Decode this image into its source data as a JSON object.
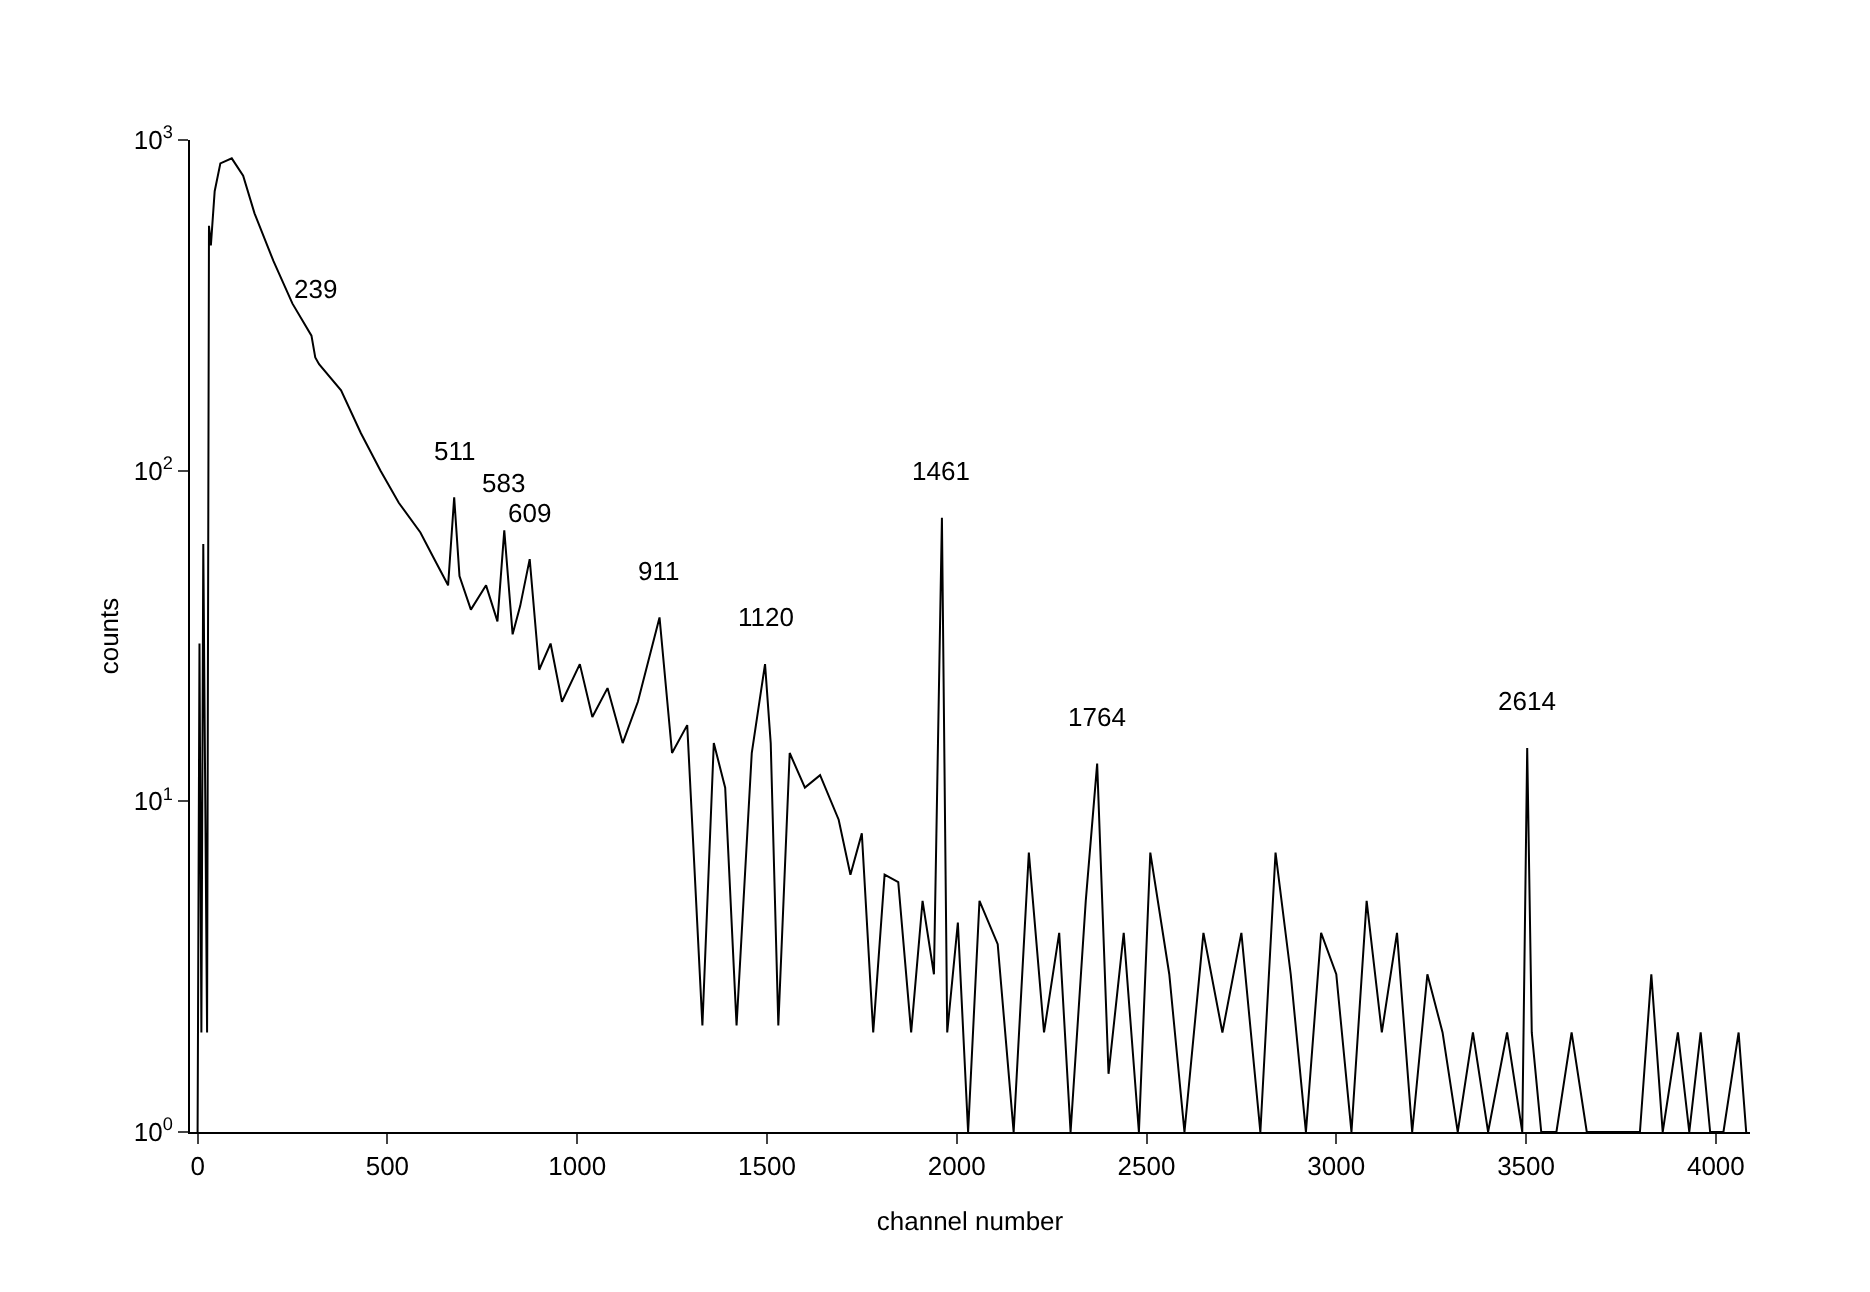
{
  "chart_data": {
    "type": "line",
    "xlabel": "channel number",
    "ylabel": "counts",
    "log": "y",
    "xlim": [
      -20,
      4090
    ],
    "ylim": [
      1,
      1000
    ],
    "xticks": [
      0,
      500,
      1000,
      1500,
      2000,
      2500,
      3000,
      3500,
      4000
    ],
    "yticks": [
      {
        "value": 1,
        "label": "10$^{0}$"
      },
      {
        "value": 10,
        "label": "10$^{1}$"
      },
      {
        "value": 100,
        "label": "10$^{2}$"
      },
      {
        "value": 1000,
        "label": "10$^{3}$"
      }
    ],
    "marker": "none",
    "line_style": "solid",
    "series": [
      {
        "color": "#000000",
        "x": [
          0,
          5,
          10,
          15,
          25,
          30,
          35,
          45,
          60,
          90,
          120,
          150,
          200,
          250,
          300,
          310,
          320,
          378,
          430,
          482,
          530,
          587,
          620,
          660,
          676,
          690,
          720,
          760,
          790,
          808,
          830,
          850,
          875,
          900,
          930,
          960,
          1007,
          1040,
          1080,
          1120,
          1160,
          1217,
          1250,
          1290,
          1330,
          1360,
          1390,
          1420,
          1460,
          1495,
          1510,
          1530,
          1560,
          1600,
          1640,
          1689,
          1720,
          1750,
          1780,
          1810,
          1846,
          1880,
          1910,
          1940,
          1961,
          1975,
          2003,
          2030,
          2060,
          2108,
          2150,
          2190,
          2230,
          2270,
          2300,
          2340,
          2370,
          2400,
          2440,
          2480,
          2510,
          2560,
          2600,
          2650,
          2700,
          2750,
          2800,
          2840,
          2880,
          2920,
          2960,
          3000,
          3040,
          3080,
          3120,
          3160,
          3200,
          3240,
          3280,
          3320,
          3360,
          3400,
          3450,
          3490,
          3503,
          3515,
          3540,
          3580,
          3620,
          3660,
          3700,
          3750,
          3800,
          3830,
          3860,
          3900,
          3930,
          3960,
          3985,
          4020,
          4060,
          4080
        ],
        "values": [
          1,
          30,
          2,
          60,
          2,
          550,
          480,
          700,
          850,
          880,
          780,
          600,
          430,
          320,
          256,
          220,
          210,
          175,
          130,
          100,
          80,
          65,
          55,
          45,
          83,
          48,
          38,
          45,
          35,
          66,
          32,
          39,
          54,
          25,
          30,
          20,
          26,
          18,
          22,
          15,
          20,
          36,
          14,
          17,
          2.1,
          15,
          11,
          2.1,
          14,
          26,
          15,
          2.1,
          14,
          11,
          12,
          8.8,
          6,
          8,
          2,
          6,
          5.7,
          2,
          5,
          3,
          72,
          2,
          4.3,
          1,
          5,
          3.7,
          1,
          7,
          2,
          4,
          1,
          5,
          13,
          1.5,
          4,
          1,
          7,
          3,
          1,
          4,
          2,
          4,
          1,
          7,
          3,
          1,
          4,
          3,
          1,
          5,
          2,
          4,
          1,
          3,
          2,
          1,
          2,
          1,
          2,
          1,
          14.5,
          2,
          1,
          1,
          2,
          1,
          1,
          1,
          1,
          3,
          1,
          2,
          1,
          2,
          1,
          1,
          2,
          1
        ]
      }
    ],
    "annotations": [
      {
        "text": "239",
        "x": 310,
        "y": 256
      },
      {
        "text": "511",
        "x": 676,
        "y": 83
      },
      {
        "text": "583",
        "x": 808,
        "y": 66
      },
      {
        "text": "609",
        "x": 875,
        "y": 54
      },
      {
        "text": "911",
        "x": 1217,
        "y": 36
      },
      {
        "text": "1120",
        "x": 1495,
        "y": 26
      },
      {
        "text": "1461",
        "x": 1961,
        "y": 72
      },
      {
        "text": "1764",
        "x": 2370,
        "y": 13
      },
      {
        "text": "2614",
        "x": 3503,
        "y": 14.5
      }
    ]
  }
}
